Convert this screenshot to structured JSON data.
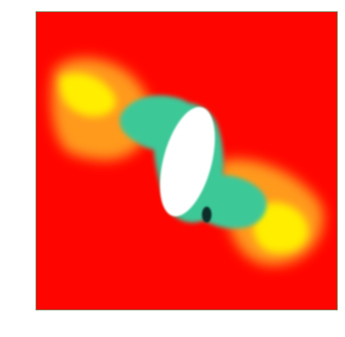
{
  "image": {
    "kind": "false-color density map",
    "colors": {
      "background": "#ffffff",
      "field": "#ff0500",
      "halo_yellow": "#ffee00",
      "halo_orange": "#ff9a1c",
      "teal": "#3ec898",
      "core": "#ffffff",
      "dark_spot": "#0f2d2a",
      "edge": "#79855a"
    }
  }
}
